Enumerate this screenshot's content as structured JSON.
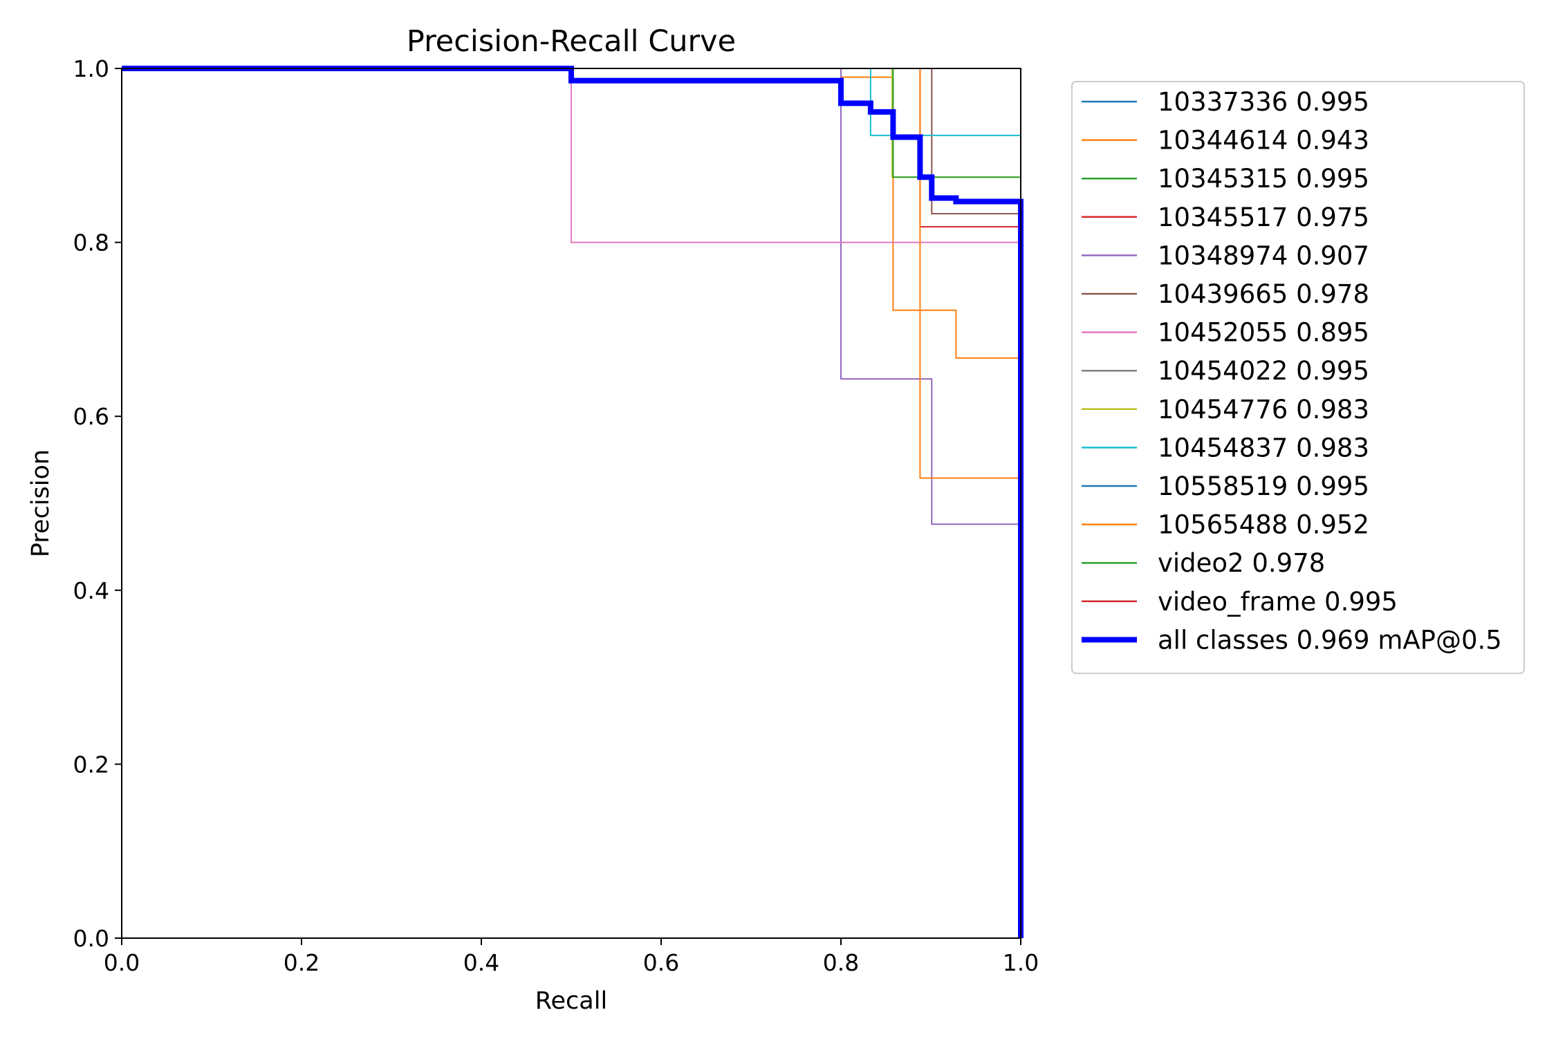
{
  "chart_data": {
    "type": "line",
    "title": "Precision-Recall Curve",
    "xlabel": "Recall",
    "ylabel": "Precision",
    "xlim": [
      0.0,
      1.0
    ],
    "ylim": [
      0.0,
      1.0
    ],
    "xticks": [
      "0.0",
      "0.2",
      "0.4",
      "0.6",
      "0.8",
      "1.0"
    ],
    "yticks": [
      "0.0",
      "0.2",
      "0.4",
      "0.6",
      "0.8",
      "1.0"
    ],
    "grid": false,
    "legend_position": "outside-right",
    "series": [
      {
        "name": "10337336 0.995",
        "color": "#1f77b4",
        "width": 2,
        "points": [
          [
            0,
            1
          ],
          [
            1,
            1
          ],
          [
            1,
            0
          ]
        ]
      },
      {
        "name": "10344614 0.943",
        "color": "#ff7f0e",
        "width": 2,
        "points": [
          [
            0,
            1
          ],
          [
            0.8,
            1
          ],
          [
            0.8,
            0.99
          ],
          [
            0.858,
            0.99
          ],
          [
            0.858,
            0.722
          ],
          [
            0.928,
            0.722
          ],
          [
            0.928,
            0.667
          ],
          [
            1,
            0.667
          ],
          [
            1,
            0
          ]
        ]
      },
      {
        "name": "10345315 0.995",
        "color": "#2ca02c",
        "width": 2,
        "points": [
          [
            0,
            1
          ],
          [
            1,
            1
          ],
          [
            1,
            0
          ]
        ]
      },
      {
        "name": "10345517 0.975",
        "color": "#d62728",
        "width": 2,
        "points": [
          [
            0,
            1
          ],
          [
            0.888,
            1
          ],
          [
            0.888,
            0.818
          ],
          [
            1,
            0.818
          ],
          [
            1,
            0
          ]
        ]
      },
      {
        "name": "10348974 0.907",
        "color": "#9467bd",
        "width": 2,
        "points": [
          [
            0,
            1
          ],
          [
            0.8,
            1
          ],
          [
            0.8,
            0.643
          ],
          [
            0.901,
            0.643
          ],
          [
            0.901,
            0.476
          ],
          [
            1,
            0.476
          ],
          [
            1,
            0
          ]
        ]
      },
      {
        "name": "10439665 0.978",
        "color": "#8c564b",
        "width": 2,
        "points": [
          [
            0,
            1
          ],
          [
            0.901,
            1
          ],
          [
            0.901,
            0.833
          ],
          [
            1,
            0.833
          ],
          [
            1,
            0
          ]
        ]
      },
      {
        "name": "10452055 0.895",
        "color": "#e377c2",
        "width": 2,
        "points": [
          [
            0,
            1
          ],
          [
            0.5,
            1
          ],
          [
            0.5,
            0.8
          ],
          [
            1,
            0.8
          ],
          [
            1,
            0
          ]
        ]
      },
      {
        "name": "10454022 0.995",
        "color": "#7f7f7f",
        "width": 2,
        "points": [
          [
            0,
            1
          ],
          [
            1,
            1
          ],
          [
            1,
            0
          ]
        ]
      },
      {
        "name": "10454776 0.983",
        "color": "#bcbd22",
        "width": 2,
        "points": [
          [
            0,
            1
          ],
          [
            0.857,
            1
          ],
          [
            0.857,
            0.875
          ],
          [
            1,
            0.875
          ],
          [
            1,
            0
          ]
        ]
      },
      {
        "name": "10454837 0.983",
        "color": "#17becf",
        "width": 2,
        "points": [
          [
            0,
            1
          ],
          [
            0.833,
            1
          ],
          [
            0.833,
            0.923
          ],
          [
            1,
            0.923
          ],
          [
            1,
            0
          ]
        ]
      },
      {
        "name": "10558519 0.995",
        "color": "#1f77b4",
        "width": 2,
        "points": [
          [
            0,
            1
          ],
          [
            1,
            1
          ],
          [
            1,
            0
          ]
        ]
      },
      {
        "name": "10565488 0.952",
        "color": "#ff7f0e",
        "width": 2,
        "points": [
          [
            0,
            1
          ],
          [
            0.888,
            1
          ],
          [
            0.888,
            0.529
          ],
          [
            1,
            0.529
          ],
          [
            1,
            0
          ]
        ]
      },
      {
        "name": "video2 0.978",
        "color": "#2ca02c",
        "width": 2,
        "points": [
          [
            0,
            1
          ],
          [
            0.858,
            1
          ],
          [
            0.858,
            0.875
          ],
          [
            1,
            0.875
          ],
          [
            1,
            0
          ]
        ]
      },
      {
        "name": "video_frame 0.995",
        "color": "#d62728",
        "width": 2,
        "points": [
          [
            0,
            1
          ],
          [
            1,
            1
          ],
          [
            1,
            0
          ]
        ]
      },
      {
        "name": "all classes 0.969 mAP@0.5",
        "color": "#0000ff",
        "width": 8,
        "points": [
          [
            0,
            1
          ],
          [
            0.5,
            1
          ],
          [
            0.5,
            0.986
          ],
          [
            0.8,
            0.986
          ],
          [
            0.8,
            0.96
          ],
          [
            0.833,
            0.96
          ],
          [
            0.833,
            0.95
          ],
          [
            0.858,
            0.95
          ],
          [
            0.858,
            0.921
          ],
          [
            0.888,
            0.921
          ],
          [
            0.888,
            0.875
          ],
          [
            0.901,
            0.875
          ],
          [
            0.901,
            0.851
          ],
          [
            0.928,
            0.851
          ],
          [
            0.928,
            0.847
          ],
          [
            1,
            0.847
          ],
          [
            1,
            0
          ]
        ]
      }
    ]
  }
}
